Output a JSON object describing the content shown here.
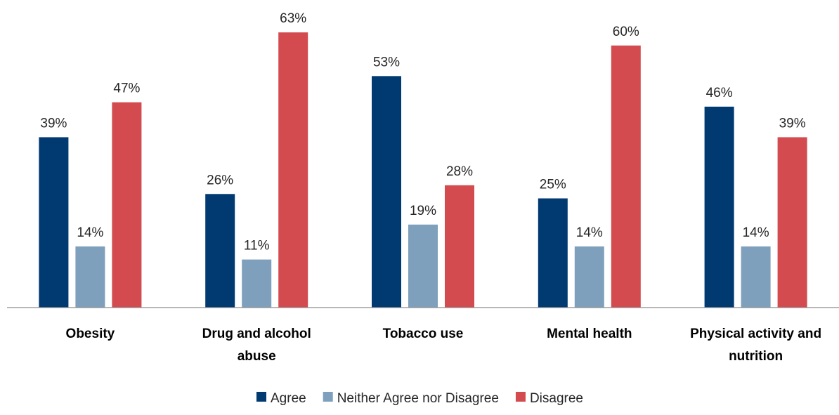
{
  "chart_data": {
    "type": "bar",
    "title": "",
    "xlabel": "",
    "ylabel": "",
    "ylim": [
      0,
      70
    ],
    "grid": false,
    "legend_position": "bottom",
    "categories": [
      [
        "Obesity"
      ],
      [
        "Drug and alcohol",
        "abuse"
      ],
      [
        "Tobacco use"
      ],
      [
        "Mental health"
      ],
      [
        "Physical activity and",
        "nutrition"
      ]
    ],
    "series": [
      {
        "name": "Agree",
        "color": "#003A70",
        "values": [
          39,
          26,
          53,
          25,
          46
        ],
        "labels": [
          "39%",
          "26%",
          "53%",
          "25%",
          "46%"
        ]
      },
      {
        "name": "Neither Agree nor Disagree",
        "color": "#7FA0BC",
        "values": [
          14,
          11,
          19,
          14,
          14
        ],
        "labels": [
          "14%",
          "11%",
          "19%",
          "14%",
          "14%"
        ]
      },
      {
        "name": "Disagree",
        "color": "#D34A4F",
        "values": [
          47,
          63,
          28,
          60,
          39
        ],
        "labels": [
          "47%",
          "63%",
          "28%",
          "60%",
          "39%"
        ]
      }
    ]
  }
}
